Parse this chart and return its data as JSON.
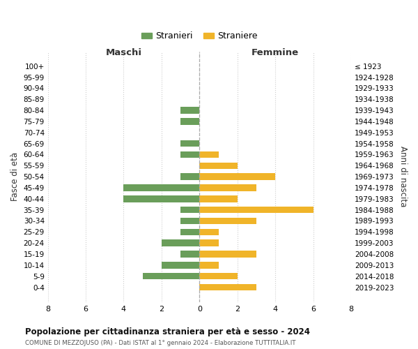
{
  "age_groups": [
    "100+",
    "95-99",
    "90-94",
    "85-89",
    "80-84",
    "75-79",
    "70-74",
    "65-69",
    "60-64",
    "55-59",
    "50-54",
    "45-49",
    "40-44",
    "35-39",
    "30-34",
    "25-29",
    "20-24",
    "15-19",
    "10-14",
    "5-9",
    "0-4"
  ],
  "birth_years": [
    "≤ 1923",
    "1924-1928",
    "1929-1933",
    "1934-1938",
    "1939-1943",
    "1944-1948",
    "1949-1953",
    "1954-1958",
    "1959-1963",
    "1964-1968",
    "1969-1973",
    "1974-1978",
    "1979-1983",
    "1984-1988",
    "1989-1993",
    "1994-1998",
    "1999-2003",
    "2004-2008",
    "2009-2013",
    "2014-2018",
    "2019-2023"
  ],
  "maschi": [
    0,
    0,
    0,
    0,
    1,
    1,
    0,
    1,
    1,
    0,
    1,
    4,
    4,
    1,
    1,
    1,
    2,
    1,
    2,
    3,
    0
  ],
  "femmine": [
    0,
    0,
    0,
    0,
    0,
    0,
    0,
    0,
    1,
    2,
    4,
    3,
    2,
    6,
    3,
    1,
    1,
    3,
    1,
    2,
    3
  ],
  "color_maschi": "#6a9e5a",
  "color_femmine": "#f0b429",
  "title": "Popolazione per cittadinanza straniera per età e sesso - 2024",
  "subtitle": "COMUNE DI MEZZOJUSO (PA) - Dati ISTAT al 1° gennaio 2024 - Elaborazione TUTTITALIA.IT",
  "xlabel_left": "Maschi",
  "xlabel_right": "Femmine",
  "ylabel_left": "Fasce di età",
  "ylabel_right": "Anni di nascita",
  "legend_maschi": "Stranieri",
  "legend_femmine": "Straniere",
  "xlim": 8,
  "background_color": "#ffffff",
  "grid_color": "#cccccc"
}
